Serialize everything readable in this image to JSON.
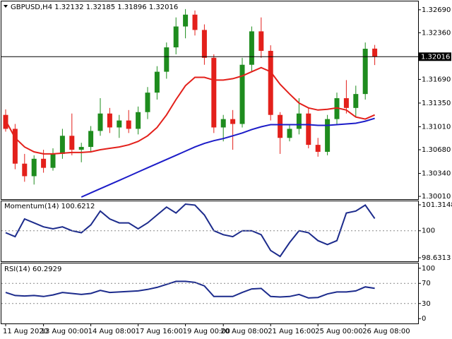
{
  "chart_data": [
    {
      "type": "candlestick",
      "title": "GBPUSD,H4  1.32132 1.32185 1.31896 1.32016",
      "categories": [
        "11 Aug 2020",
        null,
        null,
        null,
        "13 Aug 00:00",
        null,
        null,
        null,
        null,
        "14 Aug 08:00",
        null,
        null,
        null,
        null,
        "17 Aug 16:00",
        null,
        null,
        null,
        null,
        "19 Aug 00:00",
        null,
        null,
        null,
        "20 Aug 08:00",
        null,
        null,
        null,
        null,
        "21 Aug 16:00",
        null,
        null,
        null,
        null,
        "25 Aug 00:00",
        null,
        null,
        null,
        null,
        "26 Aug 08:00",
        null
      ],
      "open": [
        1.3118,
        1.3098,
        1.3048,
        1.303,
        1.3055,
        1.3042,
        1.3062,
        1.3088,
        1.3068,
        1.3072,
        1.3095,
        1.312,
        1.31,
        1.311,
        1.3098,
        1.3122,
        1.315,
        1.318,
        1.3215,
        1.3245,
        1.3262,
        1.324,
        1.32,
        1.31,
        1.3112,
        1.3105,
        1.319,
        1.3238,
        1.321,
        1.3118,
        1.3085,
        1.3098,
        1.312,
        1.3075,
        1.3065,
        1.3112,
        1.3142,
        1.3128,
        1.3148,
        1.32132
      ],
      "high": [
        1.3126,
        1.3105,
        1.3062,
        1.306,
        1.3068,
        1.307,
        1.3098,
        1.312,
        1.3078,
        1.3102,
        1.3142,
        1.3128,
        1.3118,
        1.3125,
        1.313,
        1.3158,
        1.3188,
        1.3222,
        1.3258,
        1.327,
        1.3268,
        1.3248,
        1.3205,
        1.3118,
        1.3125,
        1.32,
        1.3245,
        1.3258,
        1.3218,
        1.3122,
        1.3105,
        1.3142,
        1.3128,
        1.3085,
        1.3118,
        1.315,
        1.3168,
        1.316,
        1.3222,
        1.32185
      ],
      "low": [
        1.3094,
        1.304,
        1.3022,
        1.3018,
        1.3035,
        1.3038,
        1.3055,
        1.306,
        1.305,
        1.3065,
        1.3088,
        1.3092,
        1.3085,
        1.3092,
        1.309,
        1.3112,
        1.314,
        1.317,
        1.3205,
        1.3228,
        1.3232,
        1.319,
        1.3092,
        1.308,
        1.3068,
        1.31,
        1.318,
        1.32,
        1.311,
        1.3062,
        1.308,
        1.309,
        1.307,
        1.3058,
        1.306,
        1.3105,
        1.312,
        1.3115,
        1.314,
        1.31896
      ],
      "close": [
        1.3098,
        1.3048,
        1.303,
        1.3055,
        1.3042,
        1.3062,
        1.3088,
        1.3068,
        1.3072,
        1.3095,
        1.312,
        1.31,
        1.311,
        1.3098,
        1.3122,
        1.315,
        1.318,
        1.3215,
        1.3245,
        1.3262,
        1.324,
        1.32,
        1.31,
        1.3112,
        1.3105,
        1.319,
        1.3238,
        1.321,
        1.3118,
        1.3085,
        1.3098,
        1.312,
        1.3075,
        1.3065,
        1.3112,
        1.3142,
        1.3128,
        1.3148,
        1.3213,
        1.32016
      ],
      "up_color": "#1e8c1e",
      "down_color": "#e3201b",
      "series": [
        {
          "color": "#e3201b",
          "values": [
            1.311,
            1.3085,
            1.3072,
            1.3065,
            1.3062,
            1.3062,
            1.3063,
            1.3064,
            1.3064,
            1.3065,
            1.3068,
            1.307,
            1.3072,
            1.3075,
            1.308,
            1.3088,
            1.31,
            1.3118,
            1.314,
            1.316,
            1.3172,
            1.3172,
            1.3168,
            1.3168,
            1.317,
            1.3174,
            1.318,
            1.3186,
            1.318,
            1.3162,
            1.3148,
            1.3135,
            1.3128,
            1.3125,
            1.3126,
            1.3128,
            1.3125,
            1.3115,
            1.3112,
            1.3118
          ]
        },
        {
          "color": "#1c1cc8",
          "values": [
            null,
            null,
            null,
            null,
            null,
            null,
            null,
            null,
            1.3,
            1.3006,
            1.3012,
            1.3018,
            1.3024,
            1.303,
            1.3036,
            1.3042,
            1.3048,
            1.3054,
            1.306,
            1.3066,
            1.3072,
            1.3077,
            1.3081,
            1.3084,
            1.3088,
            1.3092,
            1.3097,
            1.3101,
            1.3104,
            1.3104,
            1.3104,
            1.3104,
            1.3104,
            1.3103,
            1.3103,
            1.3104,
            1.3105,
            1.3106,
            1.3109,
            1.3113
          ]
        }
      ],
      "ylim": [
        1.2997,
        1.3281
      ],
      "yticks": [
        {
          "value": 1.3269,
          "label": "1.32690"
        },
        {
          "value": 1.3236,
          "label": "1.32360"
        },
        {
          "value": 1.3169,
          "label": "1.31690"
        },
        {
          "value": 1.3135,
          "label": "1.31350"
        },
        {
          "value": 1.3101,
          "label": "1.31010"
        },
        {
          "value": 1.3068,
          "label": "1.30680"
        },
        {
          "value": 1.3034,
          "label": "1.30340"
        },
        {
          "value": 1.3001,
          "label": "1.30010"
        }
      ],
      "current_price": {
        "value": 1.32016,
        "label": "1.32016"
      }
    },
    {
      "type": "line",
      "title": "Momentum(14) 100.6212",
      "series": [
        {
          "color": "#1c2b8c",
          "values": [
            99.9,
            99.7,
            100.6,
            100.4,
            100.2,
            100.1,
            100.2,
            100.0,
            99.9,
            100.3,
            101.0,
            100.6,
            100.4,
            100.4,
            100.1,
            100.4,
            100.8,
            101.2,
            100.9,
            101.35,
            101.3,
            100.8,
            100.0,
            99.8,
            99.7,
            100.0,
            100.0,
            99.8,
            99.0,
            98.7,
            99.4,
            100.0,
            99.9,
            99.5,
            99.3,
            99.5,
            100.9,
            101.0,
            101.3,
            100.6212
          ]
        }
      ],
      "ylim": [
        98.452,
        101.494
      ],
      "yticks": [
        101.3148,
        100,
        98.6313
      ],
      "levels": [
        100
      ]
    },
    {
      "type": "line",
      "title": "RSI(14) 60.2929",
      "series": [
        {
          "color": "#1c2b8c",
          "values": [
            52,
            46,
            45,
            46,
            44,
            47,
            52,
            50,
            48,
            50,
            56,
            52,
            53,
            54,
            55,
            58,
            62,
            68,
            74,
            74,
            72,
            65,
            44,
            44,
            44,
            52,
            59,
            60,
            44,
            43,
            44,
            48,
            41,
            42,
            49,
            53,
            53,
            55,
            63,
            60.2929
          ]
        }
      ],
      "ylim": [
        -9.6,
        109.6
      ],
      "yticks": [
        100,
        70,
        30,
        0
      ],
      "levels": [
        70,
        30
      ]
    }
  ]
}
